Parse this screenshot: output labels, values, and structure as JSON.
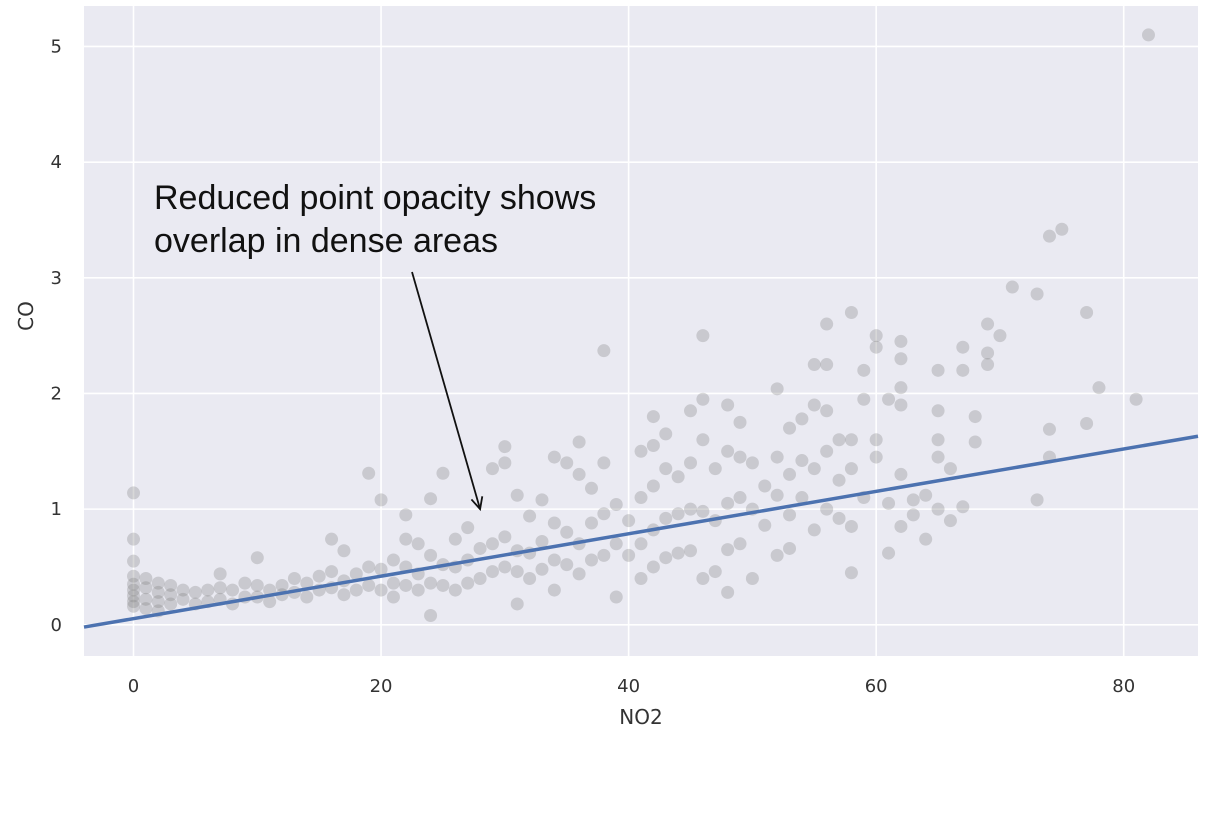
{
  "chart_data": {
    "type": "scatter",
    "title": "",
    "xlabel": "NO2",
    "ylabel": "CO",
    "xlim": [
      -4,
      86
    ],
    "ylim": [
      -0.27,
      5.35
    ],
    "xticks": [
      0,
      20,
      40,
      60,
      80
    ],
    "yticks": [
      0,
      1,
      2,
      3,
      4,
      5
    ],
    "grid": true,
    "point_color": "#7f7f7f",
    "point_opacity": 0.3,
    "line_color": "#4c72b0",
    "background_color": "#eaeaf2",
    "regression_line": {
      "x": [
        -4,
        86
      ],
      "y": [
        -0.02,
        1.63
      ]
    },
    "annotation": {
      "lines": [
        "Reduced point opacity shows",
        "overlap in dense areas"
      ],
      "arrow_tail": [
        22.5,
        3.05
      ],
      "arrow_head": [
        28.0,
        1.0
      ]
    },
    "points": [
      [
        0,
        1.14
      ],
      [
        0,
        0.74
      ],
      [
        0,
        0.55
      ],
      [
        0,
        0.42
      ],
      [
        0,
        0.35
      ],
      [
        0,
        0.3
      ],
      [
        0,
        0.25
      ],
      [
        0,
        0.2
      ],
      [
        0,
        0.16
      ],
      [
        1,
        0.4
      ],
      [
        1,
        0.32
      ],
      [
        1,
        0.22
      ],
      [
        1,
        0.14
      ],
      [
        2,
        0.36
      ],
      [
        2,
        0.28
      ],
      [
        2,
        0.2
      ],
      [
        2,
        0.12
      ],
      [
        3,
        0.34
      ],
      [
        3,
        0.26
      ],
      [
        3,
        0.18
      ],
      [
        4,
        0.3
      ],
      [
        4,
        0.22
      ],
      [
        5,
        0.28
      ],
      [
        5,
        0.18
      ],
      [
        6,
        0.3
      ],
      [
        6,
        0.2
      ],
      [
        7,
        0.44
      ],
      [
        7,
        0.32
      ],
      [
        7,
        0.22
      ],
      [
        8,
        0.3
      ],
      [
        8,
        0.18
      ],
      [
        9,
        0.36
      ],
      [
        9,
        0.24
      ],
      [
        10,
        0.58
      ],
      [
        10,
        0.34
      ],
      [
        10,
        0.24
      ],
      [
        11,
        0.3
      ],
      [
        11,
        0.2
      ],
      [
        12,
        0.34
      ],
      [
        12,
        0.26
      ],
      [
        13,
        0.4
      ],
      [
        13,
        0.28
      ],
      [
        14,
        0.36
      ],
      [
        14,
        0.24
      ],
      [
        15,
        0.42
      ],
      [
        15,
        0.3
      ],
      [
        16,
        0.74
      ],
      [
        16,
        0.46
      ],
      [
        16,
        0.32
      ],
      [
        17,
        0.64
      ],
      [
        17,
        0.38
      ],
      [
        17,
        0.26
      ],
      [
        18,
        0.44
      ],
      [
        18,
        0.3
      ],
      [
        19,
        1.31
      ],
      [
        19,
        0.5
      ],
      [
        19,
        0.34
      ],
      [
        20,
        1.08
      ],
      [
        20,
        0.48
      ],
      [
        20,
        0.3
      ],
      [
        21,
        0.56
      ],
      [
        21,
        0.36
      ],
      [
        21,
        0.24
      ],
      [
        22,
        0.95
      ],
      [
        22,
        0.74
      ],
      [
        22,
        0.5
      ],
      [
        22,
        0.34
      ],
      [
        23,
        0.7
      ],
      [
        23,
        0.44
      ],
      [
        23,
        0.3
      ],
      [
        24,
        1.09
      ],
      [
        24,
        0.6
      ],
      [
        24,
        0.36
      ],
      [
        24,
        0.08
      ],
      [
        25,
        1.31
      ],
      [
        25,
        0.52
      ],
      [
        25,
        0.34
      ],
      [
        26,
        0.74
      ],
      [
        26,
        0.5
      ],
      [
        26,
        0.3
      ],
      [
        27,
        0.84
      ],
      [
        27,
        0.56
      ],
      [
        27,
        0.36
      ],
      [
        28,
        0.66
      ],
      [
        28,
        0.4
      ],
      [
        29,
        1.35
      ],
      [
        29,
        0.7
      ],
      [
        29,
        0.46
      ],
      [
        30,
        1.54
      ],
      [
        30,
        1.4
      ],
      [
        30,
        0.76
      ],
      [
        30,
        0.5
      ],
      [
        31,
        1.12
      ],
      [
        31,
        0.64
      ],
      [
        31,
        0.46
      ],
      [
        31,
        0.18
      ],
      [
        32,
        0.94
      ],
      [
        32,
        0.62
      ],
      [
        32,
        0.4
      ],
      [
        33,
        1.08
      ],
      [
        33,
        0.72
      ],
      [
        33,
        0.48
      ],
      [
        34,
        1.45
      ],
      [
        34,
        0.88
      ],
      [
        34,
        0.56
      ],
      [
        34,
        0.3
      ],
      [
        35,
        1.4
      ],
      [
        35,
        0.8
      ],
      [
        35,
        0.52
      ],
      [
        36,
        1.58
      ],
      [
        36,
        1.3
      ],
      [
        36,
        0.7
      ],
      [
        36,
        0.44
      ],
      [
        37,
        1.18
      ],
      [
        37,
        0.88
      ],
      [
        37,
        0.56
      ],
      [
        38,
        2.37
      ],
      [
        38,
        1.4
      ],
      [
        38,
        0.96
      ],
      [
        38,
        0.6
      ],
      [
        39,
        1.04
      ],
      [
        39,
        0.7
      ],
      [
        39,
        0.24
      ],
      [
        40,
        0.9
      ],
      [
        40,
        0.6
      ],
      [
        41,
        1.5
      ],
      [
        41,
        1.1
      ],
      [
        41,
        0.7
      ],
      [
        41,
        0.4
      ],
      [
        42,
        1.8
      ],
      [
        42,
        1.55
      ],
      [
        42,
        1.2
      ],
      [
        42,
        0.82
      ],
      [
        42,
        0.5
      ],
      [
        43,
        1.65
      ],
      [
        43,
        1.35
      ],
      [
        43,
        0.92
      ],
      [
        43,
        0.58
      ],
      [
        44,
        1.28
      ],
      [
        44,
        0.96
      ],
      [
        44,
        0.62
      ],
      [
        45,
        1.85
      ],
      [
        45,
        1.4
      ],
      [
        45,
        1.0
      ],
      [
        45,
        0.64
      ],
      [
        46,
        2.5
      ],
      [
        46,
        1.95
      ],
      [
        46,
        1.6
      ],
      [
        46,
        0.98
      ],
      [
        46,
        0.4
      ],
      [
        47,
        1.35
      ],
      [
        47,
        0.9
      ],
      [
        47,
        0.46
      ],
      [
        48,
        1.9
      ],
      [
        48,
        1.5
      ],
      [
        48,
        1.05
      ],
      [
        48,
        0.65
      ],
      [
        48,
        0.28
      ],
      [
        49,
        1.75
      ],
      [
        49,
        1.45
      ],
      [
        49,
        1.1
      ],
      [
        49,
        0.7
      ],
      [
        50,
        1.4
      ],
      [
        50,
        1.0
      ],
      [
        50,
        0.4
      ],
      [
        51,
        1.2
      ],
      [
        51,
        0.86
      ],
      [
        52,
        2.04
      ],
      [
        52,
        1.45
      ],
      [
        52,
        1.12
      ],
      [
        52,
        0.6
      ],
      [
        53,
        1.7
      ],
      [
        53,
        1.3
      ],
      [
        53,
        0.95
      ],
      [
        53,
        0.66
      ],
      [
        54,
        1.78
      ],
      [
        54,
        1.42
      ],
      [
        54,
        1.1
      ],
      [
        55,
        2.25
      ],
      [
        55,
        1.9
      ],
      [
        55,
        1.35
      ],
      [
        55,
        0.82
      ],
      [
        56,
        2.6
      ],
      [
        56,
        2.25
      ],
      [
        56,
        1.85
      ],
      [
        56,
        1.5
      ],
      [
        56,
        1.0
      ],
      [
        57,
        1.6
      ],
      [
        57,
        1.25
      ],
      [
        57,
        0.92
      ],
      [
        58,
        2.7
      ],
      [
        58,
        1.6
      ],
      [
        58,
        1.35
      ],
      [
        58,
        0.85
      ],
      [
        58,
        0.45
      ],
      [
        59,
        2.2
      ],
      [
        59,
        1.95
      ],
      [
        59,
        1.1
      ],
      [
        60,
        2.5
      ],
      [
        60,
        2.4
      ],
      [
        60,
        1.6
      ],
      [
        60,
        1.45
      ],
      [
        61,
        1.95
      ],
      [
        61,
        1.05
      ],
      [
        61,
        0.62
      ],
      [
        62,
        2.45
      ],
      [
        62,
        2.3
      ],
      [
        62,
        2.05
      ],
      [
        62,
        1.9
      ],
      [
        62,
        1.3
      ],
      [
        62,
        0.85
      ],
      [
        63,
        1.08
      ],
      [
        63,
        0.95
      ],
      [
        64,
        0.74
      ],
      [
        64,
        1.12
      ],
      [
        65,
        1.85
      ],
      [
        65,
        2.2
      ],
      [
        65,
        1.6
      ],
      [
        65,
        1.45
      ],
      [
        65,
        1.0
      ],
      [
        66,
        1.35
      ],
      [
        66,
        0.9
      ],
      [
        67,
        2.4
      ],
      [
        67,
        2.2
      ],
      [
        67,
        1.02
      ],
      [
        68,
        1.8
      ],
      [
        68,
        1.58
      ],
      [
        69,
        2.6
      ],
      [
        69,
        2.35
      ],
      [
        69,
        2.25
      ],
      [
        70,
        2.5
      ],
      [
        71,
        2.92
      ],
      [
        73,
        2.86
      ],
      [
        73,
        1.08
      ],
      [
        74,
        3.36
      ],
      [
        74,
        1.69
      ],
      [
        74,
        1.45
      ],
      [
        75,
        3.42
      ],
      [
        77,
        2.7
      ],
      [
        77,
        1.74
      ],
      [
        78,
        2.05
      ],
      [
        81,
        1.95
      ],
      [
        82,
        5.1
      ]
    ]
  }
}
